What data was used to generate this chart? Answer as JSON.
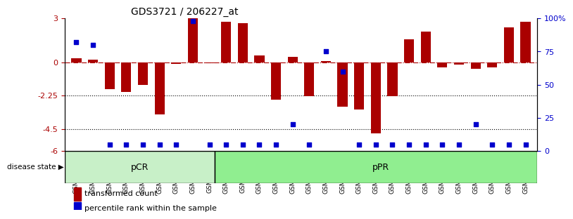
{
  "title": "GDS3721 / 206227_at",
  "samples": [
    "GSM559062",
    "GSM559063",
    "GSM559064",
    "GSM559065",
    "GSM559066",
    "GSM559067",
    "GSM559068",
    "GSM559069",
    "GSM559042",
    "GSM559043",
    "GSM559044",
    "GSM559045",
    "GSM559046",
    "GSM559047",
    "GSM559048",
    "GSM559049",
    "GSM559050",
    "GSM559051",
    "GSM559052",
    "GSM559053",
    "GSM559054",
    "GSM559055",
    "GSM559056",
    "GSM559057",
    "GSM559058",
    "GSM559059",
    "GSM559060",
    "GSM559061"
  ],
  "transformed_count": [
    0.3,
    0.2,
    -1.8,
    -2.0,
    -1.5,
    -3.5,
    -0.1,
    3.0,
    -0.05,
    2.8,
    2.7,
    0.5,
    -2.5,
    0.4,
    -2.3,
    0.1,
    -3.0,
    -3.2,
    -4.8,
    -2.3,
    1.6,
    2.1,
    -0.3,
    -0.15,
    -0.4,
    -0.3,
    2.4,
    2.8
  ],
  "percentile_rank": [
    82,
    80,
    5,
    5,
    5,
    5,
    5,
    98,
    5,
    5,
    5,
    5,
    5,
    20,
    5,
    75,
    60,
    5,
    5,
    5,
    5,
    5,
    5,
    5,
    20,
    5,
    5,
    5
  ],
  "group_labels": [
    "pCR",
    "pPR"
  ],
  "group_sizes": [
    9,
    19
  ],
  "pCR_color": "#c8f0c8",
  "pPR_color": "#90ee90",
  "bar_color": "#aa0000",
  "dot_color": "#0000cc",
  "ylim_left": [
    -6,
    3
  ],
  "ylim_right": [
    0,
    100
  ],
  "yticks_left": [
    3,
    0,
    -2.25,
    -4.5,
    -6
  ],
  "ytick_labels_left": [
    "3",
    "0",
    "-2.25",
    "-4.5",
    "-6"
  ],
  "yticks_right": [
    100,
    75,
    50,
    25,
    0
  ],
  "ytick_labels_right": [
    "100%",
    "75",
    "50",
    "25",
    "0"
  ],
  "hline_zero": 0,
  "hline_m225": -2.25,
  "hline_m45": -4.5,
  "disease_state_label": "disease state"
}
